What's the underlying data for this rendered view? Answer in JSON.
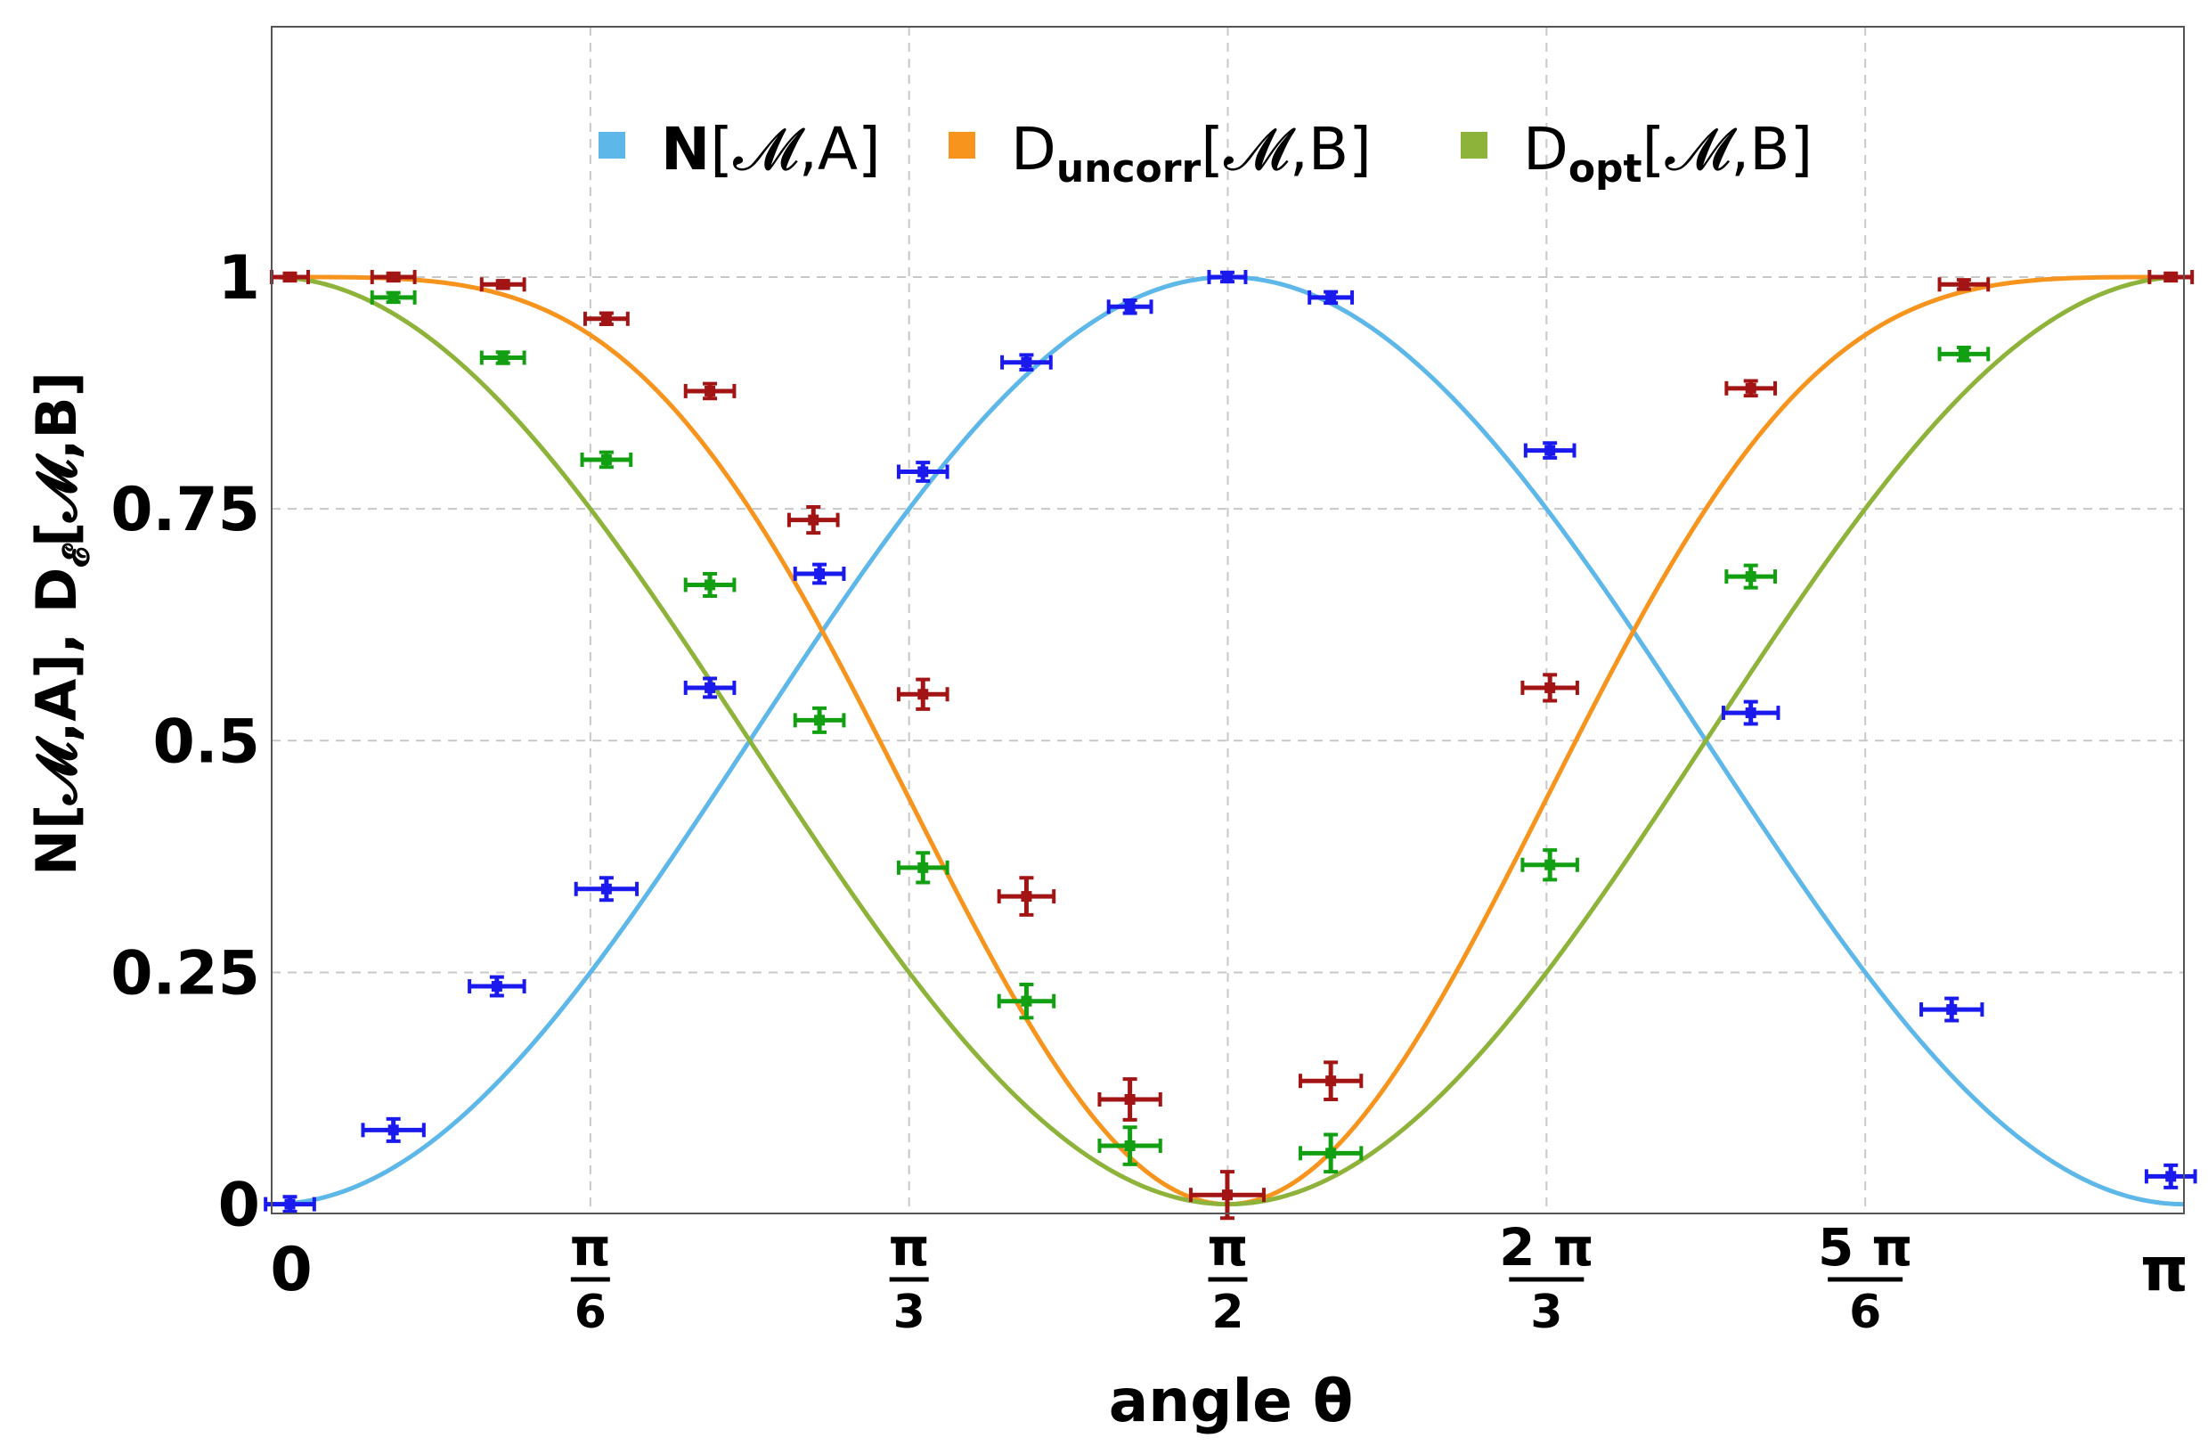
{
  "chart_data": {
    "type": "line",
    "xlabel": "angle θ",
    "ylabel": "N[𝓜,A], D",
    "ylabel_sub": "𝓔",
    "ylabel_tail": "[𝓜,B]",
    "xlim": [
      0,
      3.14159
    ],
    "ylim": [
      -0.01,
      1.27
    ],
    "grid": true,
    "legend_position": "top",
    "x_ticks": [
      {
        "value": 0,
        "num": "0",
        "den": ""
      },
      {
        "value": 0.5236,
        "num": "π",
        "den": "6"
      },
      {
        "value": 1.0472,
        "num": "π",
        "den": "3"
      },
      {
        "value": 1.5708,
        "num": "π",
        "den": "2"
      },
      {
        "value": 2.0944,
        "num": "2 π",
        "den": "3"
      },
      {
        "value": 2.618,
        "num": "5 π",
        "den": "6"
      },
      {
        "value": 3.1416,
        "num": "π",
        "den": ""
      }
    ],
    "y_ticks": [
      {
        "value": 0,
        "label": "0"
      },
      {
        "value": 0.25,
        "label": "0.25"
      },
      {
        "value": 0.5,
        "label": "0.5"
      },
      {
        "value": 0.75,
        "label": "0.75"
      },
      {
        "value": 1,
        "label": "1"
      }
    ],
    "legend": [
      {
        "name": "N[𝓜,A]",
        "main": "N",
        "sub": "",
        "tail": "[𝓜,A]",
        "color": "#5db7e8"
      },
      {
        "name": "D_uncorr[𝓜,B]",
        "main": "D",
        "sub": "uncorr",
        "tail": "[𝓜,B]",
        "color": "#f7941d"
      },
      {
        "name": "D_opt[𝓜,B]",
        "main": "D",
        "sub": "opt",
        "tail": "[𝓜,B]",
        "color": "#8db33a"
      }
    ],
    "curves": [
      {
        "name": "N[𝓜,A]",
        "color": "#5db7e8",
        "formula": "sin^2(theta)"
      },
      {
        "name": "D_uncorr[𝓜,B]",
        "color": "#f7941d",
        "formula": "1 - sin^4(theta)"
      },
      {
        "name": "D_opt[𝓜,B]",
        "color": "#8db33a",
        "formula": "cos^2(theta)"
      }
    ],
    "series": [
      {
        "name": "N[𝓜,A] measured",
        "color": "#1a1aee",
        "x": [
          0.03,
          0.2,
          0.37,
          0.55,
          0.72,
          0.9,
          1.07,
          1.24,
          1.41,
          1.57,
          1.74,
          2.1,
          2.43,
          2.76,
          3.12
        ],
        "y": [
          0.0,
          0.08,
          0.235,
          0.34,
          0.557,
          0.68,
          0.79,
          0.908,
          0.968,
          1.0,
          0.978,
          0.813,
          0.53,
          0.21,
          0.03
        ],
        "xerr": [
          0.04,
          0.05,
          0.045,
          0.05,
          0.04,
          0.04,
          0.04,
          0.04,
          0.035,
          0.03,
          0.035,
          0.04,
          0.045,
          0.05,
          0.04
        ],
        "yerr": [
          0.008,
          0.012,
          0.01,
          0.012,
          0.01,
          0.01,
          0.01,
          0.008,
          0.007,
          0.005,
          0.006,
          0.008,
          0.012,
          0.012,
          0.012
        ]
      },
      {
        "name": "D_uncorr[𝓜,B] measured",
        "color": "#a31515",
        "x": [
          0.03,
          0.2,
          0.38,
          0.55,
          0.72,
          0.89,
          1.07,
          1.24,
          1.41,
          1.57,
          1.74,
          2.1,
          2.43,
          2.78,
          3.12
        ],
        "y": [
          1.0,
          1.0,
          0.992,
          0.955,
          0.877,
          0.738,
          0.55,
          0.332,
          0.113,
          0.01,
          0.133,
          0.557,
          0.88,
          0.992,
          1.0
        ],
        "xerr": [
          0.03,
          0.035,
          0.035,
          0.035,
          0.04,
          0.04,
          0.04,
          0.045,
          0.05,
          0.06,
          0.05,
          0.045,
          0.04,
          0.04,
          0.035
        ],
        "yerr": [
          0.004,
          0.004,
          0.004,
          0.006,
          0.008,
          0.014,
          0.016,
          0.02,
          0.022,
          0.025,
          0.02,
          0.014,
          0.008,
          0.005,
          0.004
        ],
        "caps": true
      },
      {
        "name": "D_opt[𝓜,B] measured",
        "color": "#12a012",
        "x": [
          0.2,
          0.38,
          0.55,
          0.72,
          0.9,
          1.07,
          1.24,
          1.41,
          1.74,
          2.1,
          2.43,
          2.78
        ],
        "y": [
          0.978,
          0.913,
          0.803,
          0.668,
          0.522,
          0.363,
          0.219,
          0.063,
          0.055,
          0.366,
          0.677,
          0.917
        ],
        "xerr": [
          0.035,
          0.035,
          0.04,
          0.04,
          0.04,
          0.04,
          0.045,
          0.05,
          0.05,
          0.045,
          0.04,
          0.04
        ],
        "yerr": [
          0.005,
          0.006,
          0.008,
          0.012,
          0.013,
          0.016,
          0.018,
          0.02,
          0.02,
          0.016,
          0.012,
          0.007
        ],
        "caps": true
      }
    ]
  }
}
